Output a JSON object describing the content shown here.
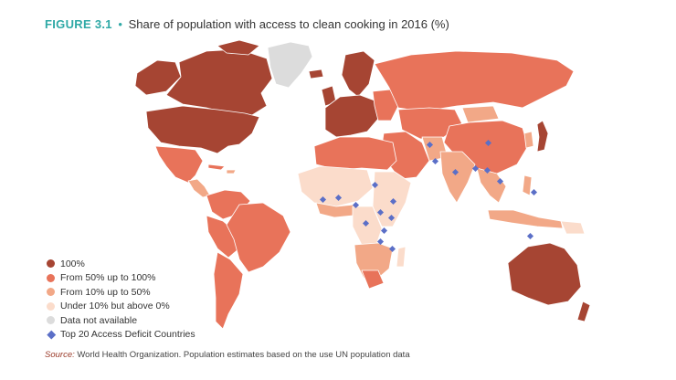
{
  "header": {
    "figure_label": "FIGURE 3.1",
    "separator": "•",
    "title": "Share of population with access to clean cooking in 2016 (%)"
  },
  "colors": {
    "c100": "#a64533",
    "c50": "#e8735a",
    "c10": "#f2a887",
    "c0": "#fbdccb",
    "na": "#dcdcdc",
    "marker": "#5b6fc7"
  },
  "legend": {
    "items": [
      {
        "label": "100%",
        "color_key": "c100",
        "shape": "circle"
      },
      {
        "label": "From 50% up to 100%",
        "color_key": "c50",
        "shape": "circle"
      },
      {
        "label": "From 10% up to 50%",
        "color_key": "c10",
        "shape": "circle"
      },
      {
        "label": "Under 10% but above 0%",
        "color_key": "c0",
        "shape": "circle"
      },
      {
        "label": "Data not available",
        "color_key": "na",
        "shape": "circle"
      },
      {
        "label": "Top 20 Access Deficit Countries",
        "color_key": "marker",
        "shape": "diamond"
      }
    ]
  },
  "source": {
    "label": "Source:",
    "text": "World Health Organization. Population estimates based on the use UN population data"
  }
}
